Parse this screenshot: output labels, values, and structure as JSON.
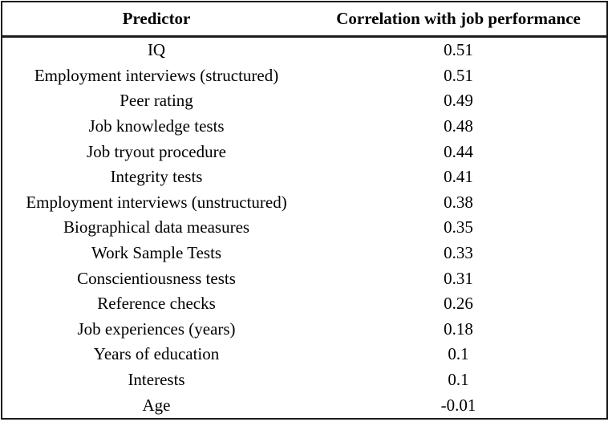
{
  "chart_data": {
    "type": "table",
    "title": "",
    "columns": [
      "Predictor",
      "Correlation with job performance"
    ],
    "rows": [
      [
        "IQ",
        "0.51"
      ],
      [
        "Employment interviews (structured)",
        "0.51"
      ],
      [
        "Peer rating",
        "0.49"
      ],
      [
        "Job knowledge tests",
        "0.48"
      ],
      [
        "Job tryout procedure",
        "0.44"
      ],
      [
        "Integrity tests",
        "0.41"
      ],
      [
        "Employment interviews (unstructured)",
        "0.38"
      ],
      [
        "Biographical data measures",
        "0.35"
      ],
      [
        "Work Sample Tests",
        "0.33"
      ],
      [
        "Conscientiousness tests",
        "0.31"
      ],
      [
        "Reference checks",
        "0.26"
      ],
      [
        "Job experiences (years)",
        "0.18"
      ],
      [
        "Years of education",
        "0.1"
      ],
      [
        "Interests",
        "0.1"
      ],
      [
        "Age",
        "-0.01"
      ]
    ],
    "layout": {
      "header_bold": true,
      "outer_border": true,
      "header_rule_thick": true,
      "column_dividers": false,
      "row_dividers": false
    }
  },
  "colors": {
    "background": "#ffffff",
    "text": "#000000",
    "border": "#1c1c1c"
  }
}
